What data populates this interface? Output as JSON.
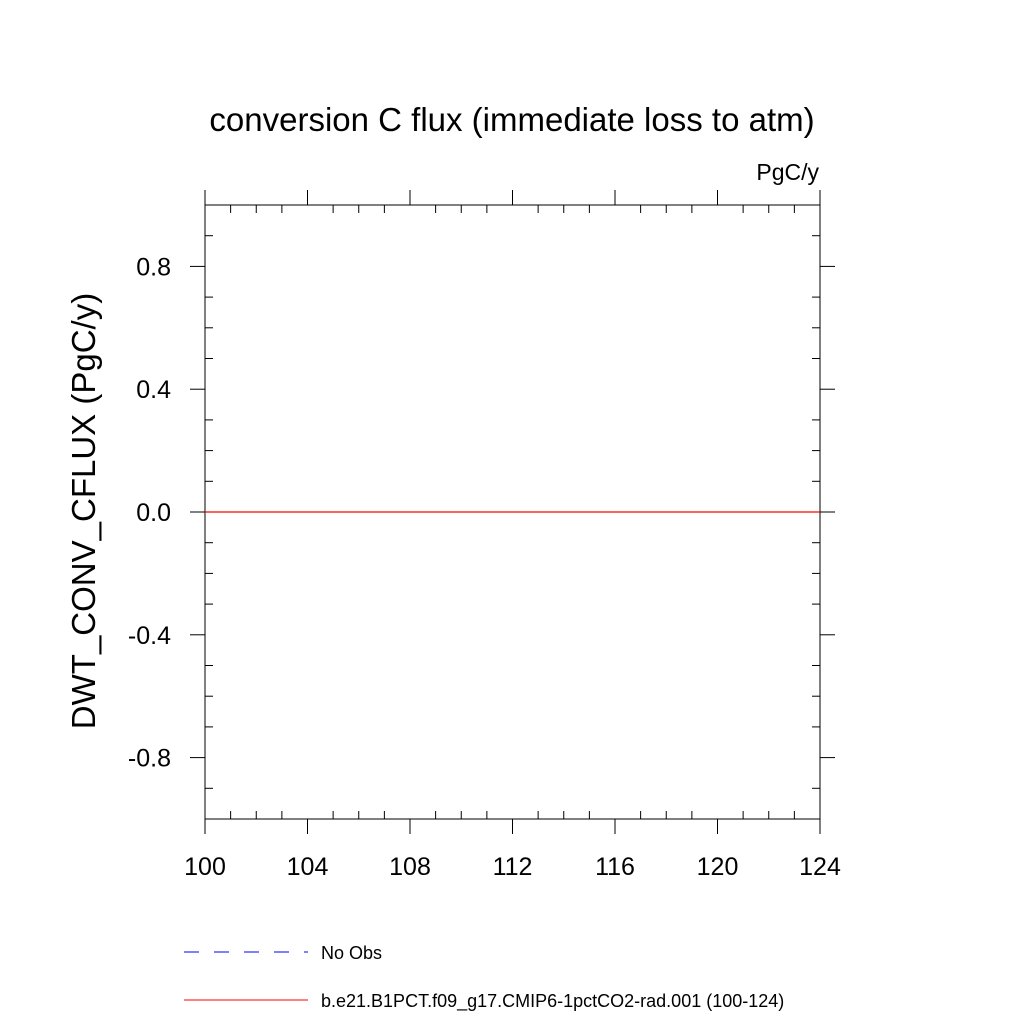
{
  "chart_data": {
    "type": "line",
    "title": "conversion C flux (immediate loss to atm)",
    "units": "PgC/y",
    "ylabel": "DWT_CONV_CFLUX  (PgC/y)",
    "xlabel": "",
    "xlim": [
      100,
      124
    ],
    "ylim": [
      -1.0,
      1.0
    ],
    "x_ticks": [
      100,
      104,
      108,
      112,
      116,
      120,
      124
    ],
    "x_tick_labels": [
      "100",
      "104",
      "108",
      "112",
      "116",
      "120",
      "124"
    ],
    "y_ticks": [
      -0.8,
      -0.4,
      0.0,
      0.4,
      0.8
    ],
    "y_tick_labels": [
      "-0.8",
      "-0.4",
      "0.0",
      "0.4",
      "0.8"
    ],
    "grid": false,
    "legend_placement": "bottom",
    "series": [
      {
        "name": "b.e21.B1PCT.f09_g17.CMIP6-1pctCO2-rad.001 (100-124)",
        "color": "#ff0000",
        "style": "solid",
        "x": [
          100,
          124
        ],
        "y": [
          0.0,
          0.0
        ]
      }
    ],
    "legend": [
      {
        "label": "No Obs",
        "color": "#0000ff",
        "style": "dashed"
      },
      {
        "label": "b.e21.B1PCT.f09_g17.CMIP6-1pctCO2-rad.001 (100-124)",
        "color": "#ff0000",
        "style": "solid"
      }
    ]
  }
}
